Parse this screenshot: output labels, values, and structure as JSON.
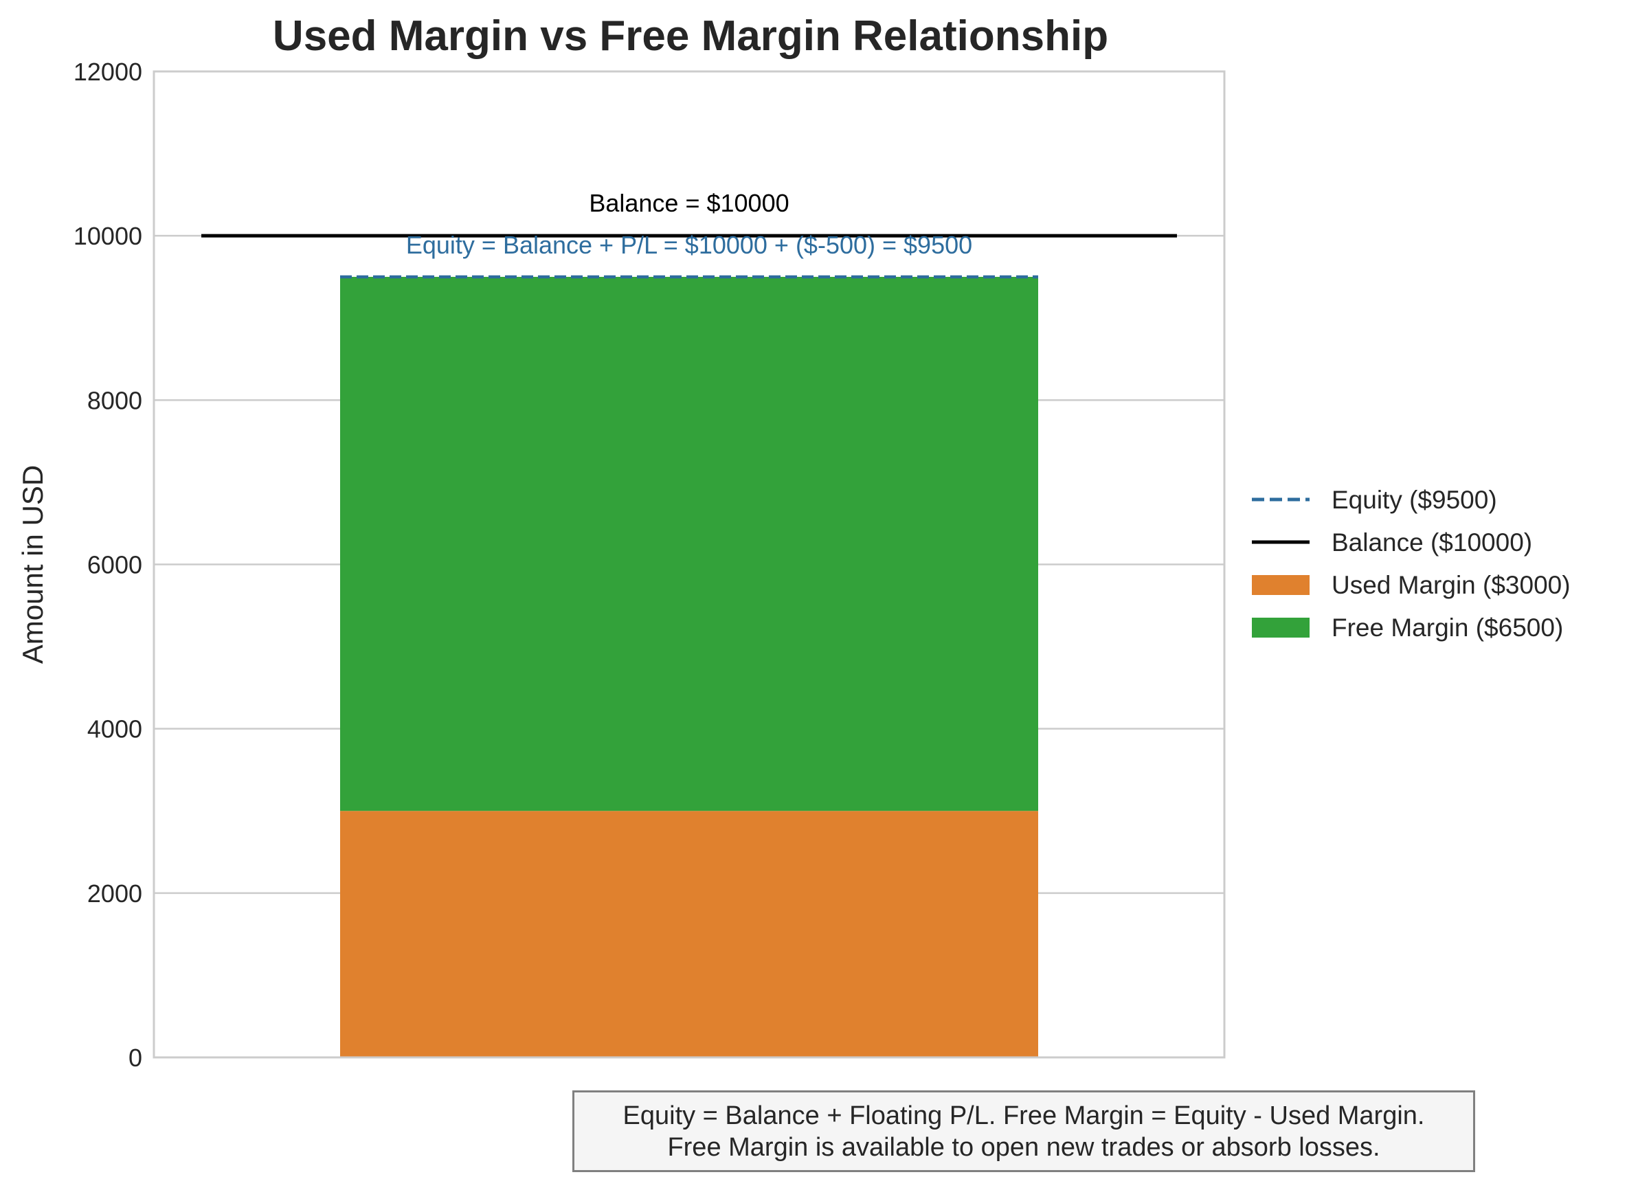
{
  "chart_data": {
    "type": "bar",
    "title": "Used Margin vs Free Margin Relationship",
    "xlabel": "",
    "ylabel": "Amount in USD",
    "ylim": [
      0,
      12000
    ],
    "yticks": [
      0,
      2000,
      4000,
      6000,
      8000,
      10000,
      12000
    ],
    "ytick_labels": [
      "0",
      "2000",
      "4000",
      "6000",
      "8000",
      "10000",
      "12000"
    ],
    "grid": true,
    "legend_position": "center-right (outside plot)",
    "stacked_bar": {
      "segments": [
        {
          "name": "Used Margin ($3000)",
          "bottom": 0,
          "value": 3000,
          "color": "#e0812e"
        },
        {
          "name": "Free Margin ($6500)",
          "bottom": 3000,
          "value": 6500,
          "color": "#33a23a"
        }
      ]
    },
    "lines": [
      {
        "name": "Equity ($9500)",
        "value": 9500,
        "style": "dashed",
        "color": "#2e6d9e",
        "annotation": "Equity = Balance + P/L = $10000 + ($-500) = $9500"
      },
      {
        "name": "Balance ($10000)",
        "value": 10000,
        "style": "solid",
        "color": "#000000",
        "annotation": "Balance = $10000"
      }
    ],
    "legend": [
      {
        "label": "Equity ($9500)",
        "kind": "dashed-line",
        "color": "#2e6d9e"
      },
      {
        "label": "Balance ($10000)",
        "kind": "solid-line",
        "color": "#000000"
      },
      {
        "label": "Used Margin ($3000)",
        "kind": "patch",
        "color": "#e0812e"
      },
      {
        "label": "Free Margin ($6500)",
        "kind": "patch",
        "color": "#33a23a"
      }
    ],
    "note": {
      "line1": "Equity = Balance + Floating P/L. Free Margin = Equity - Used Margin.",
      "line2": "Free Margin is available to open new trades or absorb losses."
    }
  }
}
